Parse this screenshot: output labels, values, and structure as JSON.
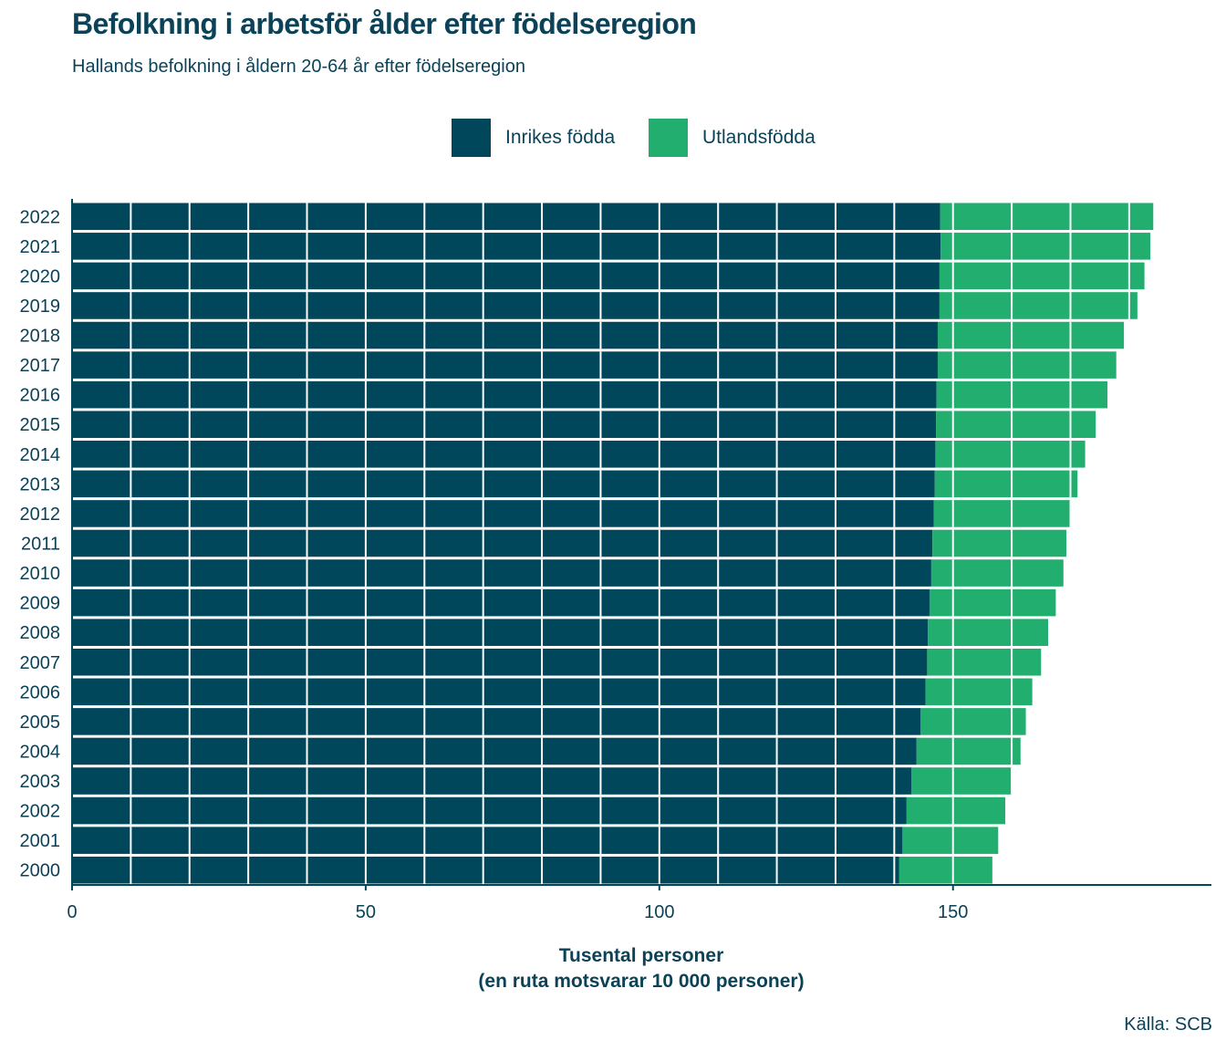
{
  "title": "Befolkning i arbetsför ålder efter födelseregion",
  "subtitle": "Hallands befolkning i åldern 20-64 år efter födelseregion",
  "source": "Källa: SCB",
  "colors": {
    "inrikes": "#00475c",
    "utrikes": "#22ae6e",
    "text": "#0b4257",
    "axis": "#00475c"
  },
  "chart_data": {
    "type": "bar",
    "orientation": "horizontal",
    "stacked": true,
    "title": "Befolkning i arbetsför ålder efter födelseregion",
    "subtitle": "Hallands befolkning i åldern 20-64 år efter födelseregion",
    "xlabel_line1": "Tusental personer",
    "xlabel_line2": "(en ruta motsvarar 10 000 personer)",
    "ylabel": "",
    "xlim": [
      0,
      194
    ],
    "xticks": [
      0,
      50,
      100,
      150
    ],
    "grid_step": 10,
    "legend_position": "top",
    "categories": [
      "2000",
      "2001",
      "2002",
      "2003",
      "2004",
      "2005",
      "2006",
      "2007",
      "2008",
      "2009",
      "2010",
      "2011",
      "2012",
      "2013",
      "2014",
      "2015",
      "2016",
      "2017",
      "2018",
      "2019",
      "2020",
      "2021",
      "2022"
    ],
    "series": [
      {
        "name": "Inrikes födda",
        "color": "#00475c",
        "values": [
          140.8,
          141.4,
          142.1,
          142.9,
          143.8,
          144.5,
          145.3,
          145.6,
          145.7,
          146.0,
          146.3,
          146.5,
          146.7,
          146.9,
          147.0,
          147.1,
          147.2,
          147.4,
          147.4,
          147.7,
          147.7,
          147.9,
          147.8
        ]
      },
      {
        "name": "Utlandsfödda",
        "color": "#22ae6e",
        "values": [
          15.9,
          16.3,
          16.8,
          17.2,
          17.7,
          17.9,
          18.2,
          19.4,
          20.5,
          21.5,
          22.5,
          22.8,
          23.4,
          24.3,
          25.5,
          27.2,
          29.1,
          30.4,
          31.7,
          33.7,
          34.9,
          35.7,
          36.3
        ]
      }
    ]
  }
}
